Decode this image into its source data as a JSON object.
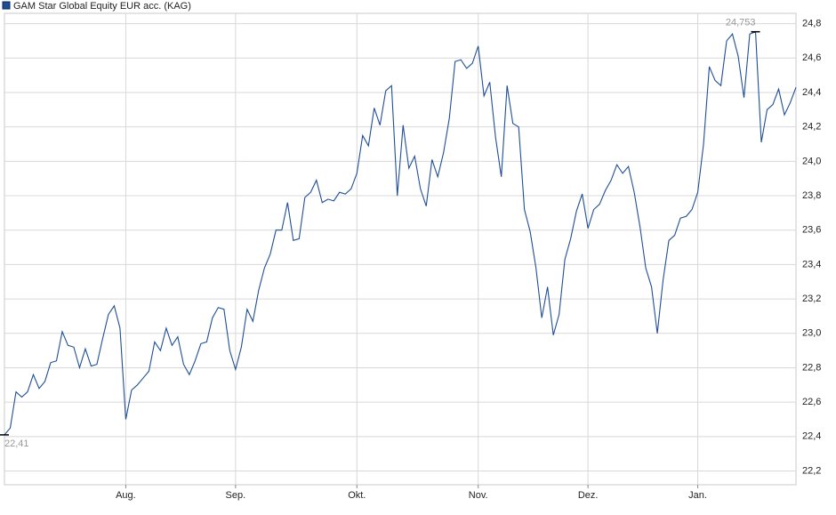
{
  "chart_data": {
    "type": "line",
    "categories": [
      null,
      null,
      null,
      null,
      null,
      null,
      null,
      null,
      null,
      null,
      null,
      null,
      null,
      null,
      null,
      null,
      null,
      null,
      null,
      null,
      null,
      "Aug.",
      null,
      null,
      null,
      null,
      null,
      null,
      null,
      null,
      null,
      null,
      null,
      null,
      null,
      null,
      null,
      null,
      null,
      null,
      "Sep.",
      null,
      null,
      null,
      null,
      null,
      null,
      null,
      null,
      null,
      null,
      null,
      null,
      null,
      null,
      null,
      null,
      null,
      null,
      null,
      null,
      "Okt.",
      null,
      null,
      null,
      null,
      null,
      null,
      null,
      null,
      null,
      null,
      null,
      null,
      null,
      null,
      null,
      null,
      null,
      null,
      null,
      null,
      "Nov.",
      null,
      null,
      null,
      null,
      null,
      null,
      null,
      null,
      null,
      null,
      null,
      null,
      null,
      null,
      null,
      null,
      null,
      null,
      "Dez.",
      null,
      null,
      null,
      null,
      null,
      null,
      null,
      null,
      null,
      null,
      null,
      null,
      null,
      null,
      null,
      null,
      null,
      null,
      "Jan.",
      null,
      null,
      null,
      null,
      null,
      null,
      null,
      null,
      null,
      null,
      null,
      null,
      null,
      null,
      null,
      null,
      null
    ],
    "series": [
      {
        "name": "GAM Star Global Equity EUR acc. (KAG)",
        "color": "#1f4e96",
        "values": [
          22.41,
          22.45,
          22.66,
          22.63,
          22.66,
          22.76,
          22.68,
          22.72,
          22.83,
          22.84,
          23.01,
          22.93,
          22.92,
          22.8,
          22.91,
          22.81,
          22.82,
          22.97,
          23.11,
          23.16,
          23.03,
          22.5,
          22.67,
          22.7,
          22.74,
          22.78,
          22.95,
          22.9,
          23.03,
          22.93,
          22.98,
          22.82,
          22.76,
          22.84,
          22.94,
          22.95,
          23.09,
          23.15,
          23.14,
          22.9,
          22.79,
          22.92,
          23.14,
          23.07,
          23.25,
          23.38,
          23.46,
          23.6,
          23.6,
          23.76,
          23.54,
          23.55,
          23.79,
          23.82,
          23.89,
          23.76,
          23.78,
          23.77,
          23.82,
          23.81,
          23.84,
          23.93,
          24.15,
          24.09,
          24.31,
          24.21,
          24.41,
          24.44,
          23.8,
          24.21,
          23.96,
          24.03,
          23.84,
          23.74,
          24.01,
          23.91,
          24.05,
          24.25,
          24.58,
          24.59,
          24.54,
          24.57,
          24.67,
          24.38,
          24.46,
          24.14,
          23.91,
          24.44,
          24.22,
          24.2,
          23.72,
          23.59,
          23.38,
          23.09,
          23.27,
          22.99,
          23.11,
          23.43,
          23.55,
          23.71,
          23.81,
          23.61,
          23.72,
          23.75,
          23.83,
          23.89,
          23.98,
          23.93,
          23.97,
          23.82,
          23.62,
          23.38,
          23.27,
          23.0,
          23.31,
          23.54,
          23.57,
          23.67,
          23.68,
          23.72,
          23.82,
          24.1,
          24.55,
          24.47,
          24.44,
          24.7,
          24.74,
          24.61,
          24.37,
          24.74,
          24.753,
          24.11,
          24.3,
          24.33,
          24.42,
          24.27,
          24.34,
          24.43
        ]
      }
    ],
    "ylim": [
      22.12,
      24.86
    ],
    "yticks": [
      {
        "value": 22.2,
        "label": "22,2"
      },
      {
        "value": 22.4,
        "label": "22,4"
      },
      {
        "value": 22.6,
        "label": "22,6"
      },
      {
        "value": 22.8,
        "label": "22,8"
      },
      {
        "value": 23.0,
        "label": "23,0"
      },
      {
        "value": 23.2,
        "label": "23,2"
      },
      {
        "value": 23.4,
        "label": "23,4"
      },
      {
        "value": 23.6,
        "label": "23,6"
      },
      {
        "value": 23.8,
        "label": "23,8"
      },
      {
        "value": 24.0,
        "label": "24,0"
      },
      {
        "value": 24.2,
        "label": "24,2"
      },
      {
        "value": 24.4,
        "label": "24,4"
      },
      {
        "value": 24.6,
        "label": "24,6"
      },
      {
        "value": 24.8,
        "label": "24,8"
      }
    ],
    "max_label": {
      "value": 24.753,
      "label": "24,753"
    },
    "min_label": {
      "value": 22.41,
      "label": "22,41"
    },
    "grid": true
  }
}
